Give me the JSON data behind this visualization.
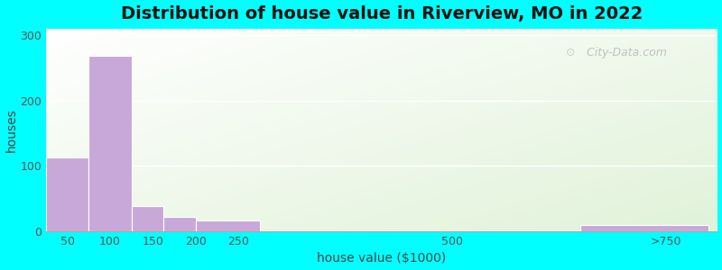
{
  "title": "Distribution of house value in Riverview, MO in 2022",
  "xlabel": "house value ($1000)",
  "ylabel": "houses",
  "bar_left_edges": [
    25,
    75,
    125,
    162,
    200,
    450,
    650
  ],
  "bar_right_edges": [
    75,
    125,
    162,
    200,
    275,
    550,
    800
  ],
  "bar_values": [
    113,
    268,
    38,
    22,
    17,
    0,
    10
  ],
  "bar_color": "#c8a8d8",
  "bar_edgecolor": "#ffffff",
  "xticks": [
    50,
    100,
    150,
    200,
    250,
    500,
    750
  ],
  "xticklabels": [
    "50",
    "100",
    "150",
    "200",
    "250",
    "500",
    ">750"
  ],
  "xlim": [
    25,
    810
  ],
  "yticks": [
    0,
    100,
    200,
    300
  ],
  "ylim": [
    0,
    310
  ],
  "background_outer": "#00ffff",
  "grid_color": "#ffffff",
  "title_fontsize": 14,
  "axis_label_fontsize": 10,
  "tick_fontsize": 9,
  "watermark": " City-Data.com"
}
